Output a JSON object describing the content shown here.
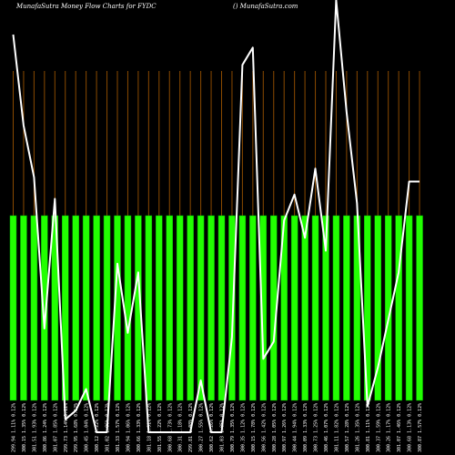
{
  "header": {
    "title": "MunafaSutra  Money Flow  Charts for FYDC",
    "site": "() MunafaSutra.com"
  },
  "colors": {
    "background": "#000000",
    "bar": "#22ff00",
    "bar_stroke": "#00aa00",
    "grid": "#8a4a00",
    "line": "#ffffff"
  },
  "chart_data": {
    "type": "bar",
    "grid": true,
    "categories": [
      "299.94 1.11% 0.12%",
      "300.15 1.35% 0.12%",
      "301.51 1.93% 0.12%",
      "300.86 1.24% 0.12%",
      "301.07 1.85% 0.12%",
      "299.73 1.14% 0.12%",
      "299.95 1.68% 0.12%",
      "300.45 1.04% 0.12%",
      "300.12 1.22% 0.12%",
      "301.02 1.86% 0.12%",
      "301.33 1.57% 0.12%",
      "300.94 1.06% 0.12%",
      "300.66 1.33% 0.12%",
      "301.18 1.91% 0.12%",
      "301.55 1.22% 0.12%",
      "300.68 1.73% 0.12%",
      "300.31 1.18% 0.12%",
      "299.81 1.08% 0.12%",
      "300.27 1.55% 0.12%",
      "300.62 1.26% 0.12%",
      "301.03 1.85% 0.12%",
      "300.79 1.35% 0.12%",
      "300.35 1.12% 0.12%",
      "300.15 1.78% 0.12%",
      "300.56 1.42% 0.12%",
      "300.28 1.05% 0.12%",
      "300.97 1.26% 0.12%",
      "300.44 1.94% 0.12%",
      "300.09 1.33% 0.12%",
      "300.73 1.25% 0.12%",
      "300.46 1.07% 0.12%",
      "301.11 1.82% 0.12%",
      "300.57 1.28% 0.12%",
      "301.26 1.35% 0.12%",
      "300.81 1.11% 0.12%",
      "300.37 1.59% 0.12%",
      "300.26 1.17% 0.12%",
      "301.07 1.46% 0.12%",
      "300.68 1.13% 0.12%",
      "300.87 1.57% 0.12%"
    ],
    "bar_heights": [
      204,
      204,
      204,
      204,
      204,
      204,
      204,
      204,
      204,
      204,
      204,
      204,
      204,
      204,
      204,
      204,
      204,
      204,
      204,
      204,
      204,
      204,
      204,
      204,
      204,
      204,
      204,
      204,
      204,
      204,
      204,
      204,
      204,
      204,
      204,
      204,
      204,
      204,
      204,
      204
    ],
    "line_values": [
      92,
      71,
      59,
      24,
      54,
      3,
      5,
      10,
      0,
      0,
      39,
      23,
      37,
      0,
      0,
      0,
      0,
      0,
      12,
      0,
      0,
      22,
      85,
      89,
      17,
      21,
      49,
      55,
      45,
      61,
      42,
      100,
      74,
      53,
      6,
      15,
      26,
      37,
      58,
      58
    ],
    "ylim": [
      0,
      100
    ]
  }
}
